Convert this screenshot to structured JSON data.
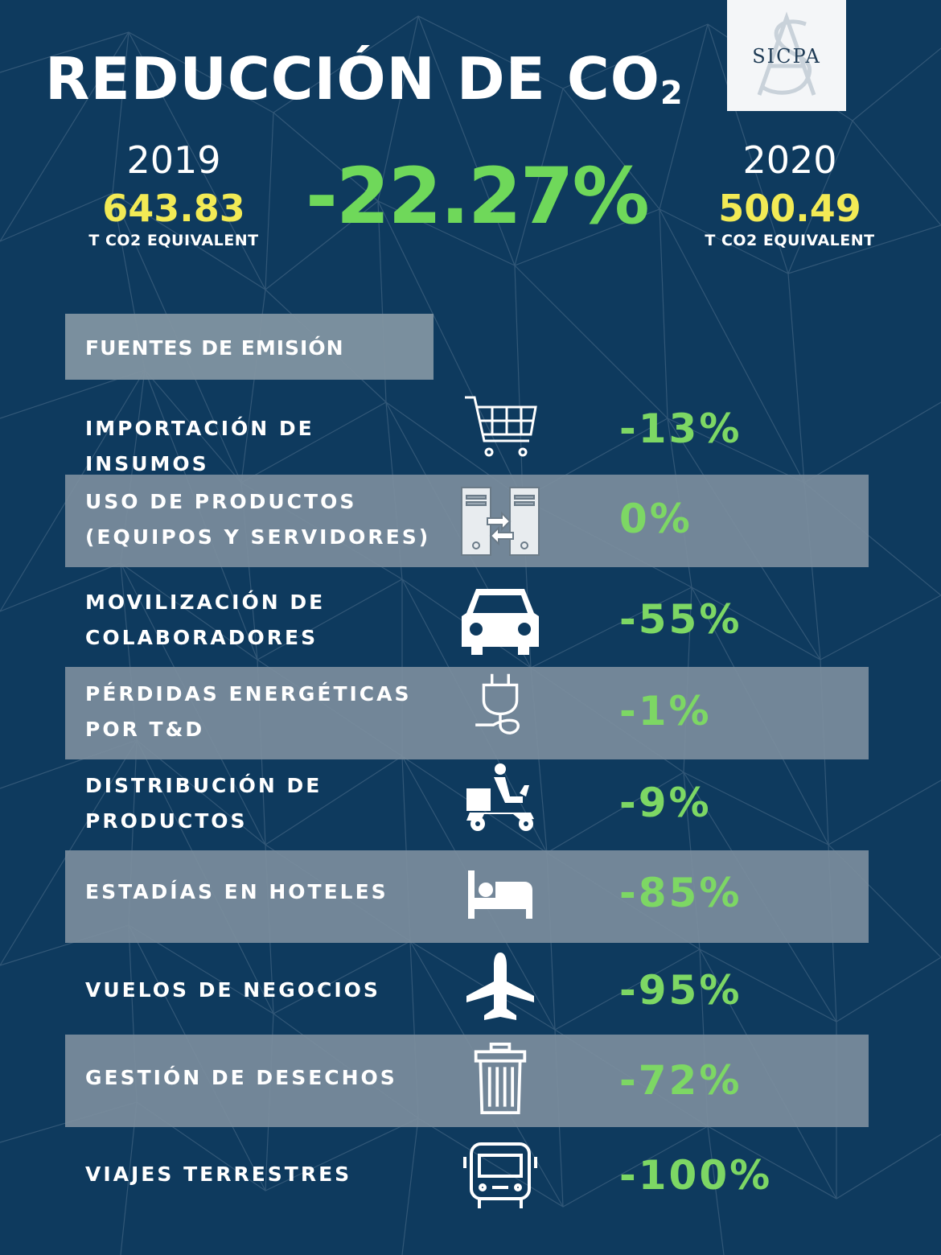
{
  "title": {
    "main": "REDUCCIÓN DE CO",
    "sub": "2"
  },
  "logo": {
    "text": "SICPA"
  },
  "summary": {
    "y2019": {
      "year": "2019",
      "value": "643.83",
      "unit": "T CO2 EQUIVALENT"
    },
    "y2020": {
      "year": "2020",
      "value": "500.49",
      "unit": "T CO2 EQUIVALENT"
    },
    "change": "-22.27%"
  },
  "sources_header": "FUENTES DE EMISIÓN",
  "rows": [
    {
      "line1": "IMPORTACIÓN DE INSUMOS",
      "line2": "",
      "value": "-13%",
      "icon": "shopping-cart-icon"
    },
    {
      "line1": "USO DE PRODUCTOS",
      "line2": "(EQUIPOS Y SERVIDORES)",
      "value": "0%",
      "icon": "servers-icon"
    },
    {
      "line1": "MOVILIZACIÓN DE",
      "line2": "COLABORADORES",
      "value": "-55%",
      "icon": "car-icon"
    },
    {
      "line1": "PÉRDIDAS ENERGÉTICAS",
      "line2": "POR T&D",
      "value": "-1%",
      "icon": "plug-icon"
    },
    {
      "line1": "DISTRIBUCIÓN DE",
      "line2": "PRODUCTOS",
      "value": "-9%",
      "icon": "delivery-scooter-icon"
    },
    {
      "line1": "ESTADÍAS EN HOTELES",
      "line2": "",
      "value": "-85%",
      "icon": "bed-icon"
    },
    {
      "line1": "VUELOS DE NEGOCIOS",
      "line2": "",
      "value": "-95%",
      "icon": "airplane-icon"
    },
    {
      "line1": "GESTIÓN DE DESECHOS",
      "line2": "",
      "value": "-72%",
      "icon": "trash-can-icon"
    },
    {
      "line1": "VIAJES TERRESTRES",
      "line2": "",
      "value": "-100%",
      "icon": "bus-icon"
    }
  ],
  "colors": {
    "background": "#0e3a5e",
    "highlight": "#6fd85a",
    "yellow": "#f2ea55",
    "band": "#7d8f9e"
  }
}
